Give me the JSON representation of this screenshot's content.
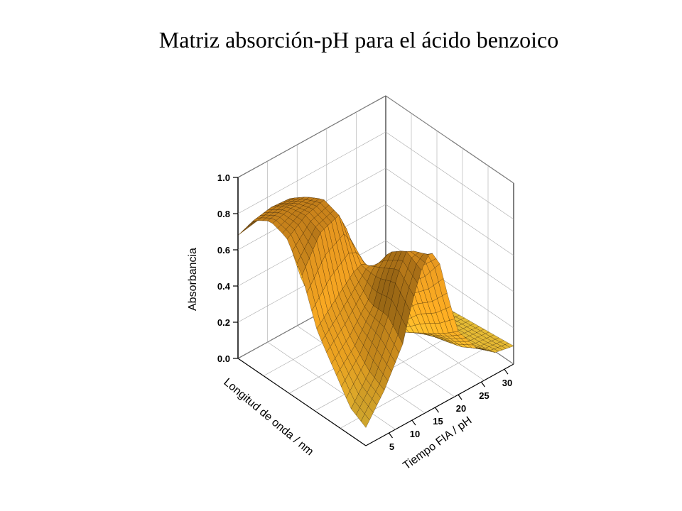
{
  "chart_data": {
    "type": "surface",
    "title": "Matriz absorción-pH para el ácido benzoico",
    "zlabel": "Absorbancia",
    "xlabel": "Tiempo FIA / pH",
    "ylabel": "Longitud de onda / nm",
    "z_ticks": [
      "0.0",
      "0.2",
      "0.4",
      "0.6",
      "0.8",
      "1.0"
    ],
    "zlim": [
      0,
      1
    ],
    "x_ticks": [
      "5",
      "10",
      "15",
      "20",
      "25",
      "30"
    ],
    "xlim": [
      0,
      32
    ],
    "grid": true,
    "colormap": [
      "#e3c23a",
      "#e0a020",
      "#c47818",
      "#f5a020"
    ],
    "surface": {
      "x_samples": [
        0,
        4,
        8,
        10,
        12,
        14,
        16,
        18,
        20,
        24,
        28,
        32
      ],
      "y_samples_fraction": [
        0.0,
        0.12,
        0.25,
        0.38,
        0.5,
        0.62,
        0.75,
        0.88,
        1.0
      ],
      "absorbance": [
        [
          0.68,
          0.7,
          0.72,
          0.6,
          0.4,
          0.22,
          0.12,
          0.06,
          0.04,
          0.03,
          0.03,
          0.03
        ],
        [
          0.82,
          0.84,
          0.83,
          0.7,
          0.48,
          0.28,
          0.16,
          0.09,
          0.05,
          0.04,
          0.03,
          0.03
        ],
        [
          0.88,
          0.9,
          0.9,
          0.78,
          0.55,
          0.34,
          0.2,
          0.12,
          0.07,
          0.05,
          0.04,
          0.04
        ],
        [
          0.85,
          0.92,
          0.95,
          0.83,
          0.6,
          0.38,
          0.24,
          0.15,
          0.09,
          0.06,
          0.05,
          0.05
        ],
        [
          0.7,
          0.88,
          0.92,
          0.8,
          0.6,
          0.4,
          0.26,
          0.17,
          0.11,
          0.07,
          0.06,
          0.06
        ],
        [
          0.45,
          0.55,
          0.65,
          0.68,
          0.62,
          0.5,
          0.38,
          0.26,
          0.16,
          0.1,
          0.08,
          0.07
        ],
        [
          0.3,
          0.4,
          0.55,
          0.7,
          0.78,
          0.7,
          0.55,
          0.38,
          0.22,
          0.12,
          0.09,
          0.08
        ],
        [
          0.15,
          0.3,
          0.55,
          0.75,
          0.85,
          0.82,
          0.65,
          0.45,
          0.28,
          0.15,
          0.1,
          0.09
        ],
        [
          0.1,
          0.25,
          0.45,
          0.65,
          0.8,
          0.88,
          0.78,
          0.55,
          0.35,
          0.2,
          0.12,
          0.1
        ]
      ]
    }
  }
}
